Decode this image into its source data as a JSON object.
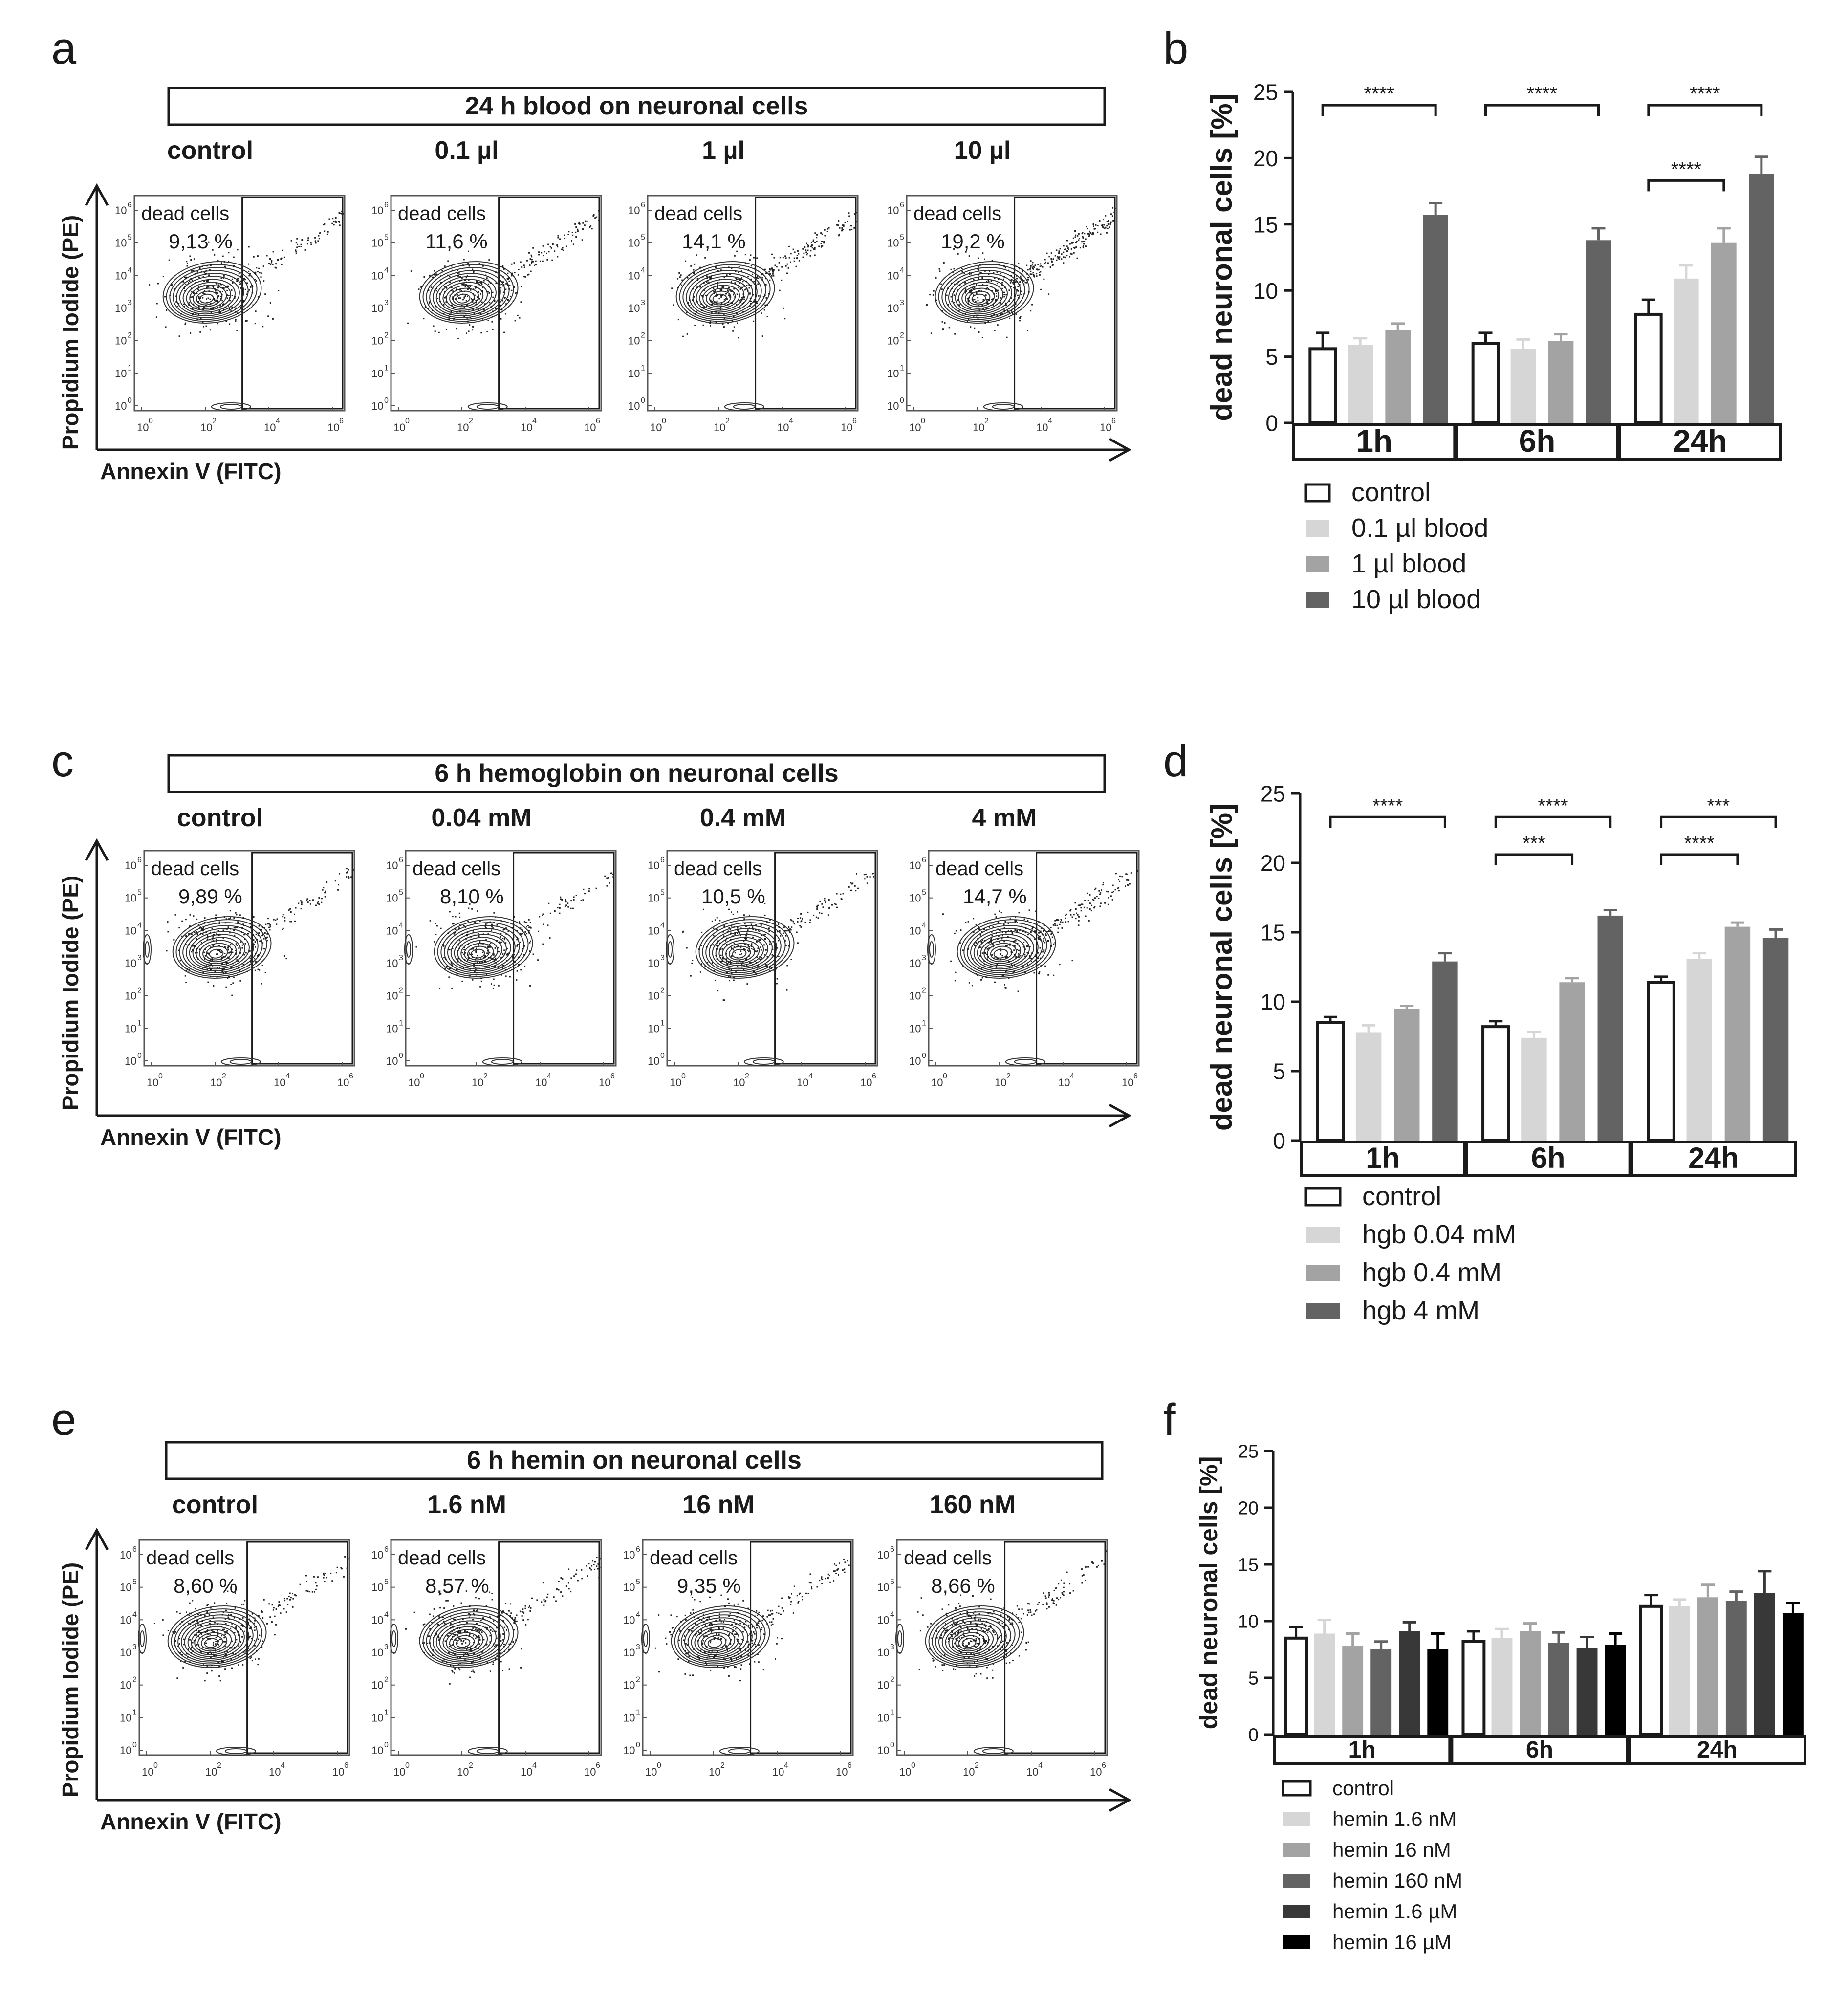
{
  "figure": {
    "panel_letters": [
      "a",
      "b",
      "c",
      "d",
      "e",
      "f"
    ],
    "colors": {
      "ink": "#1a1a1a",
      "control_fill": "#ffffff",
      "series_light": "#d6d6d6",
      "series_mid": "#a3a3a3",
      "series_dark": "#636363",
      "series_darker": "#383838",
      "series_black": "#000000"
    }
  },
  "flow_panels": [
    {
      "letter": "a",
      "banner": "24 h blood on neuronal cells",
      "y_axis_label": "Propidium Iodide (PE)",
      "x_axis_label": "Annexin V (FITC)",
      "gate_label": "dead cells",
      "tick_base": "10",
      "tick_exponents": [
        "0",
        "1",
        "2",
        "3",
        "4",
        "5",
        "6"
      ],
      "x_tick_exponents": [
        "0",
        "2",
        "4",
        "6"
      ],
      "plots": [
        {
          "condition": "control",
          "percent": "9,13 %"
        },
        {
          "condition": "0.1 µl",
          "percent": "11,6 %"
        },
        {
          "condition": "1 µl",
          "percent": "14,1 %"
        },
        {
          "condition": "10 µl",
          "percent": "19,2 %"
        }
      ]
    },
    {
      "letter": "c",
      "banner": "6 h hemoglobin on neuronal cells",
      "y_axis_label": "Propidium Iodide (PE)",
      "x_axis_label": "Annexin V (FITC)",
      "gate_label": "dead cells",
      "tick_base": "10",
      "tick_exponents": [
        "0",
        "1",
        "2",
        "3",
        "4",
        "5",
        "6"
      ],
      "x_tick_exponents": [
        "0",
        "2",
        "4",
        "6"
      ],
      "plots": [
        {
          "condition": "control",
          "percent": "9,89 %"
        },
        {
          "condition": "0.04 mM",
          "percent": "8,10 %"
        },
        {
          "condition": "0.4 mM",
          "percent": "10,5 %"
        },
        {
          "condition": "4 mM",
          "percent": "14,7 %"
        }
      ]
    },
    {
      "letter": "e",
      "banner": "6 h hemin on neuronal cells",
      "y_axis_label": "Propidium Iodide (PE)",
      "x_axis_label": "Annexin V (FITC)",
      "gate_label": "dead cells",
      "tick_base": "10",
      "tick_exponents": [
        "0",
        "1",
        "2",
        "3",
        "4",
        "5",
        "6"
      ],
      "x_tick_exponents": [
        "0",
        "2",
        "4",
        "6"
      ],
      "plots": [
        {
          "condition": "control",
          "percent": "8,60 %"
        },
        {
          "condition": "1.6 nM",
          "percent": "8,57 %"
        },
        {
          "condition": "16 nM",
          "percent": "9,35 %"
        },
        {
          "condition": "160 nM",
          "percent": "8,66 %"
        }
      ]
    }
  ],
  "chart_data": [
    {
      "letter": "b",
      "type": "bar",
      "ylabel": "dead neuronal cells [%]",
      "ylim": [
        0,
        25
      ],
      "yticks": [
        "0",
        "5",
        "10",
        "15",
        "20",
        "25"
      ],
      "groups": [
        "1h",
        "6h",
        "24h"
      ],
      "series": [
        {
          "name": "control",
          "color": "#ffffff",
          "values": [
            5.6,
            6.0,
            8.2
          ],
          "errors": [
            1.2,
            0.8,
            1.1
          ]
        },
        {
          "name": "0.1 µl blood",
          "color": "#d6d6d6",
          "values": [
            5.9,
            5.6,
            10.9
          ],
          "errors": [
            0.5,
            0.7,
            1.0
          ]
        },
        {
          "name": "1 µl blood",
          "color": "#a3a3a3",
          "values": [
            7.0,
            6.2,
            13.6
          ],
          "errors": [
            0.5,
            0.5,
            1.1
          ]
        },
        {
          "name": "10 µl blood",
          "color": "#636363",
          "values": [
            15.7,
            13.8,
            18.8
          ],
          "errors": [
            0.9,
            0.9,
            1.3
          ]
        }
      ],
      "significance": [
        {
          "label": "****",
          "group": 0,
          "from": 0,
          "to": 3,
          "level": 24.0
        },
        {
          "label": "****",
          "group": 1,
          "from": 0,
          "to": 3,
          "level": 24.0
        },
        {
          "label": "****",
          "group": 2,
          "from": 0,
          "to": 3,
          "level": 24.0
        },
        {
          "label": "****",
          "group": 2,
          "from": 0,
          "to": 2,
          "level": 18.3
        }
      ]
    },
    {
      "letter": "d",
      "type": "bar",
      "ylabel": "dead neuronal cells [%]",
      "ylim": [
        0,
        25
      ],
      "yticks": [
        "0",
        "5",
        "10",
        "15",
        "20",
        "25"
      ],
      "groups": [
        "1h",
        "6h",
        "24h"
      ],
      "series": [
        {
          "name": "control",
          "color": "#ffffff",
          "values": [
            8.5,
            8.2,
            11.4
          ],
          "errors": [
            0.4,
            0.4,
            0.4
          ]
        },
        {
          "name": "hgb 0.04 mM",
          "color": "#d6d6d6",
          "values": [
            7.8,
            7.4,
            13.1
          ],
          "errors": [
            0.5,
            0.4,
            0.4
          ]
        },
        {
          "name": "hgb 0.4 mM",
          "color": "#a3a3a3",
          "values": [
            9.5,
            11.4,
            15.4
          ],
          "errors": [
            0.2,
            0.3,
            0.3
          ]
        },
        {
          "name": "hgb 4 mM",
          "color": "#636363",
          "values": [
            12.9,
            16.2,
            14.6
          ],
          "errors": [
            0.6,
            0.4,
            0.6
          ]
        }
      ],
      "significance": [
        {
          "label": "****",
          "group": 0,
          "from": 0,
          "to": 3,
          "level": 23.3
        },
        {
          "label": "****",
          "group": 1,
          "from": 0,
          "to": 3,
          "level": 23.3
        },
        {
          "label": "***",
          "group": 1,
          "from": 0,
          "to": 2,
          "level": 20.6
        },
        {
          "label": "***",
          "group": 2,
          "from": 0,
          "to": 3,
          "level": 23.3
        },
        {
          "label": "****",
          "group": 2,
          "from": 0,
          "to": 2,
          "level": 20.6
        }
      ]
    },
    {
      "letter": "f",
      "type": "bar",
      "ylabel": "dead neuronal cells [%]",
      "ylim": [
        0,
        25
      ],
      "yticks": [
        "0",
        "5",
        "10",
        "15",
        "20",
        "25"
      ],
      "groups": [
        "1h",
        "6h",
        "24h"
      ],
      "series": [
        {
          "name": "control",
          "color": "#ffffff",
          "values": [
            8.5,
            8.2,
            11.3
          ],
          "errors": [
            1.0,
            0.9,
            1.0
          ]
        },
        {
          "name": "hemin 1.6 nM",
          "color": "#d6d6d6",
          "values": [
            8.9,
            8.5,
            11.3
          ],
          "errors": [
            1.2,
            0.8,
            0.6
          ]
        },
        {
          "name": "hemin 16 nM",
          "color": "#a3a3a3",
          "values": [
            7.8,
            9.1,
            12.1
          ],
          "errors": [
            1.1,
            0.7,
            1.1
          ]
        },
        {
          "name": "hemin 160 nM",
          "color": "#636363",
          "values": [
            7.5,
            8.1,
            11.8
          ],
          "errors": [
            0.7,
            0.9,
            0.8
          ]
        },
        {
          "name": "hemin 1.6 µM",
          "color": "#383838",
          "values": [
            9.1,
            7.6,
            12.5
          ],
          "errors": [
            0.8,
            1.0,
            1.9
          ]
        },
        {
          "name": "hemin 16 µM",
          "color": "#000000",
          "values": [
            7.5,
            7.9,
            10.7
          ],
          "errors": [
            1.4,
            1.0,
            0.9
          ]
        }
      ],
      "significance": []
    }
  ]
}
